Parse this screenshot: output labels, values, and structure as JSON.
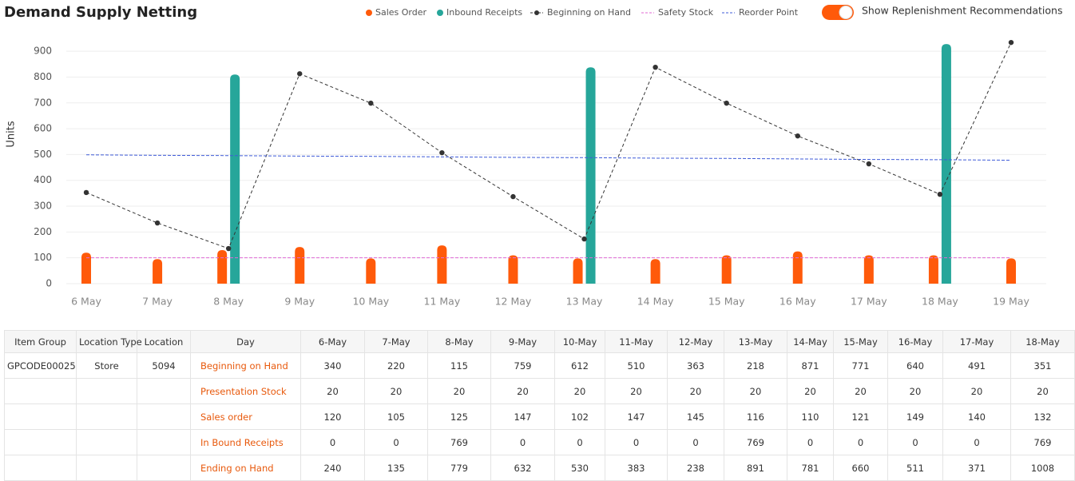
{
  "header": {
    "title": "Demand Supply Netting"
  },
  "toggle": {
    "label": "Show Replenishment Recommendations",
    "on": true
  },
  "chart_data": {
    "type": "bar",
    "ylabel": "Units",
    "categories": [
      "6 May",
      "7 May",
      "8 May",
      "9 May",
      "10 May",
      "11 May",
      "12 May",
      "13 May",
      "14 May",
      "15 May",
      "16 May",
      "17 May",
      "18 May",
      "19 May"
    ],
    "series": [
      {
        "name": "Sales Order",
        "type": "bar",
        "color": "#ff5a0a",
        "values": [
          120,
          95,
          130,
          142,
          98,
          148,
          110,
          98,
          95,
          110,
          125,
          110,
          110,
          98
        ]
      },
      {
        "name": "Inbound Receipts",
        "type": "bar",
        "color": "#26a69a",
        "values": [
          0,
          0,
          810,
          0,
          0,
          0,
          0,
          838,
          0,
          0,
          0,
          0,
          928,
          0
        ]
      },
      {
        "name": "Beginning on Hand",
        "type": "line",
        "color": "#333333",
        "values": [
          353,
          235,
          136,
          813,
          699,
          507,
          337,
          173,
          838,
          699,
          572,
          464,
          346,
          934
        ]
      },
      {
        "name": "Safety Stock",
        "type": "dashed",
        "color": "#e06ad6",
        "values": [
          100,
          100,
          100,
          100,
          100,
          100,
          100,
          100,
          100,
          100,
          100,
          100,
          100,
          100
        ]
      },
      {
        "name": "Reorder Point",
        "type": "dashed",
        "color": "#3f5bd8",
        "values": [
          499,
          497,
          496,
          494,
          493,
          491,
          489,
          488,
          486,
          485,
          483,
          481,
          480,
          478
        ]
      }
    ],
    "ylim": [
      0,
      950
    ],
    "yticks": [
      0,
      100,
      200,
      300,
      400,
      500,
      600,
      700,
      800,
      900
    ],
    "grid": true
  },
  "table": {
    "columns": [
      "Item Group",
      "Location Type",
      "Location",
      "Day",
      "6-May",
      "7-May",
      "8-May",
      "9-May",
      "10-May",
      "11-May",
      "12-May",
      "13-May",
      "14-May",
      "15-May",
      "16-May",
      "17-May",
      "18-May"
    ],
    "rows": [
      {
        "item_group": "GPCODE00025",
        "location_type": "Store",
        "location": "5094",
        "day": "Beginning on Hand",
        "values": [
          340,
          220,
          115,
          759,
          612,
          510,
          363,
          218,
          871,
          771,
          640,
          491,
          351
        ]
      },
      {
        "day": "Presentation Stock",
        "values": [
          20,
          20,
          20,
          20,
          20,
          20,
          20,
          20,
          20,
          20,
          20,
          20,
          20
        ]
      },
      {
        "day": "Sales order",
        "values": [
          120,
          105,
          125,
          147,
          102,
          147,
          145,
          116,
          110,
          121,
          149,
          140,
          132
        ]
      },
      {
        "day": "In Bound Receipts",
        "values": [
          0,
          0,
          769,
          0,
          0,
          0,
          0,
          769,
          0,
          0,
          0,
          0,
          769
        ]
      },
      {
        "day": "Ending on Hand",
        "values": [
          240,
          135,
          779,
          632,
          530,
          383,
          238,
          891,
          781,
          660,
          511,
          371,
          1008
        ]
      }
    ]
  }
}
